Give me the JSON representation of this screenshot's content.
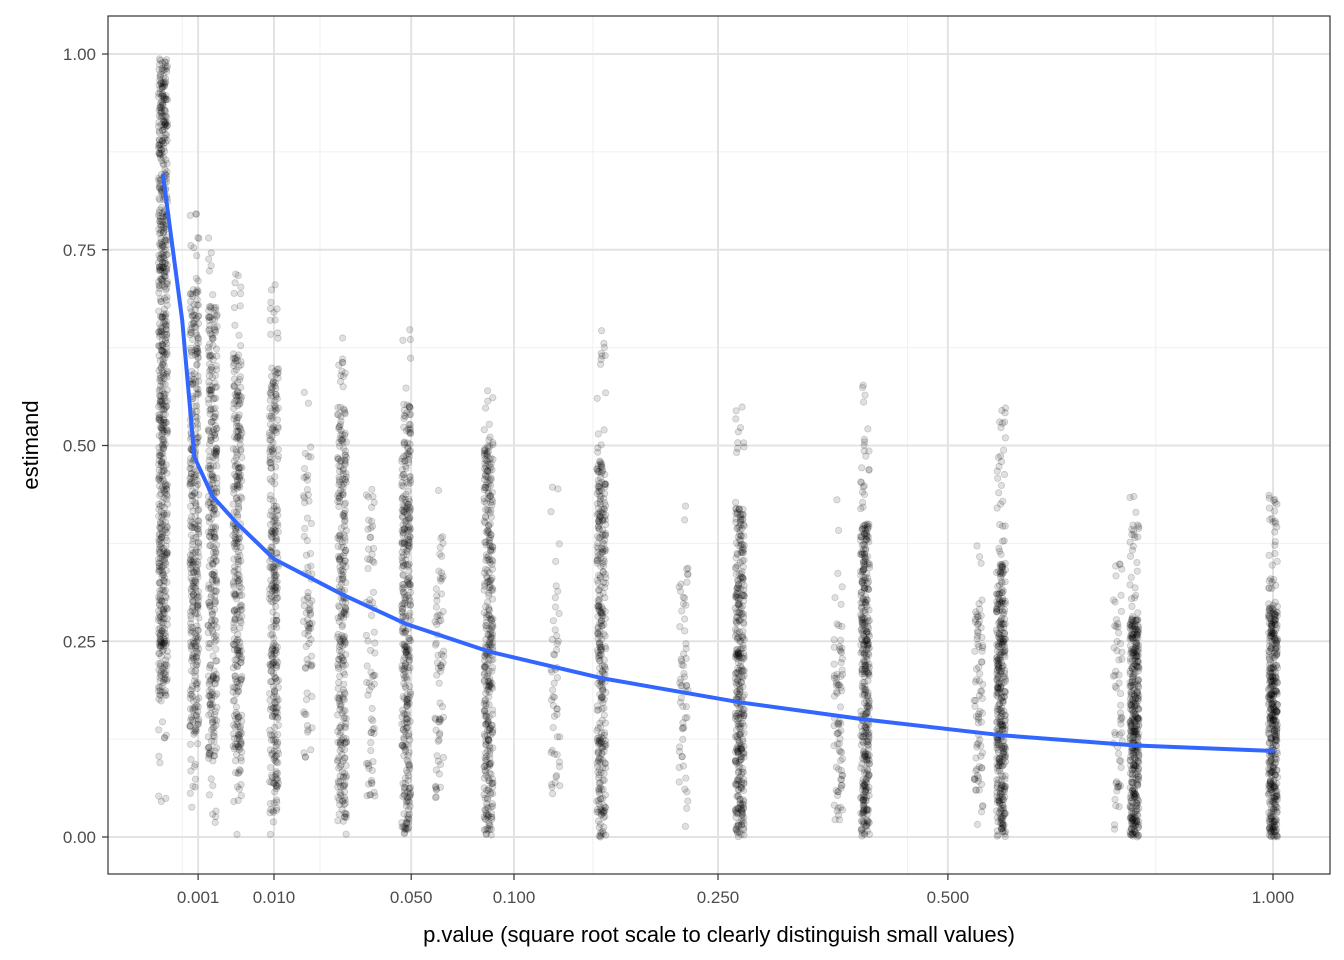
{
  "chart_data": {
    "type": "scatter",
    "xlabel": "p.value (square root scale to clearly distinguish small values)",
    "ylabel": "estimand",
    "x_scale": "sqrt",
    "xlim": [
      0,
      1.0
    ],
    "ylim": [
      -0.05,
      1.05
    ],
    "x_ticks": [
      {
        "value": 0.001,
        "label": "0.001"
      },
      {
        "value": 0.01,
        "label": "0.010"
      },
      {
        "value": 0.05,
        "label": "0.050"
      },
      {
        "value": 0.1,
        "label": "0.100"
      },
      {
        "value": 0.25,
        "label": "0.250"
      },
      {
        "value": 0.5,
        "label": "0.500"
      },
      {
        "value": 1.0,
        "label": "1.000"
      }
    ],
    "x_minor_ticks": [
      0.0003,
      0.02,
      0.15,
      0.45,
      0.8
    ],
    "y_ticks": [
      {
        "value": 0.0,
        "label": "0.00"
      },
      {
        "value": 0.25,
        "label": "0.25"
      },
      {
        "value": 0.5,
        "label": "0.50"
      },
      {
        "value": 0.75,
        "label": "0.75"
      },
      {
        "value": 1.0,
        "label": "1.00"
      }
    ],
    "y_minor_ticks": [
      0.125,
      0.375,
      0.625,
      0.875
    ],
    "point_clusters": [
      {
        "x": 0.0,
        "y_min": 0.03,
        "y_max": 1.0,
        "dense_lo": 0.18,
        "dense_hi": 1.0,
        "n": 700
      },
      {
        "x": 0.0008,
        "y_min": 0.03,
        "y_max": 0.82,
        "dense_lo": 0.12,
        "dense_hi": 0.7,
        "n": 360
      },
      {
        "x": 0.002,
        "y_min": 0.01,
        "y_max": 0.77,
        "dense_lo": 0.1,
        "dense_hi": 0.68,
        "n": 340
      },
      {
        "x": 0.0045,
        "y_min": 0.0,
        "y_max": 0.74,
        "dense_lo": 0.08,
        "dense_hi": 0.62,
        "n": 320
      },
      {
        "x": 0.01,
        "y_min": 0.0,
        "y_max": 0.71,
        "dense_lo": 0.03,
        "dense_hi": 0.6,
        "n": 320
      },
      {
        "x": 0.017,
        "y_min": 0.05,
        "y_max": 0.6,
        "dense_lo": 0.1,
        "dense_hi": 0.5,
        "n": 80
      },
      {
        "x": 0.026,
        "y_min": 0.0,
        "y_max": 0.65,
        "dense_lo": 0.02,
        "dense_hi": 0.55,
        "n": 300
      },
      {
        "x": 0.035,
        "y_min": 0.01,
        "y_max": 0.5,
        "dense_lo": 0.05,
        "dense_hi": 0.45,
        "n": 70
      },
      {
        "x": 0.048,
        "y_min": 0.0,
        "y_max": 0.65,
        "dense_lo": 0.0,
        "dense_hi": 0.55,
        "n": 360
      },
      {
        "x": 0.062,
        "y_min": 0.01,
        "y_max": 0.47,
        "dense_lo": 0.05,
        "dense_hi": 0.4,
        "n": 70
      },
      {
        "x": 0.086,
        "y_min": 0.0,
        "y_max": 0.57,
        "dense_lo": 0.0,
        "dense_hi": 0.5,
        "n": 360
      },
      {
        "x": 0.125,
        "y_min": 0.03,
        "y_max": 0.45,
        "dense_lo": 0.05,
        "dense_hi": 0.35,
        "n": 50
      },
      {
        "x": 0.156,
        "y_min": 0.0,
        "y_max": 0.65,
        "dense_lo": 0.0,
        "dense_hi": 0.48,
        "n": 340
      },
      {
        "x": 0.22,
        "y_min": 0.0,
        "y_max": 0.44,
        "dense_lo": 0.03,
        "dense_hi": 0.35,
        "n": 60
      },
      {
        "x": 0.27,
        "y_min": 0.0,
        "y_max": 0.56,
        "dense_lo": 0.0,
        "dense_hi": 0.42,
        "n": 380
      },
      {
        "x": 0.37,
        "y_min": 0.0,
        "y_max": 0.49,
        "dense_lo": 0.02,
        "dense_hi": 0.35,
        "n": 80
      },
      {
        "x": 0.4,
        "y_min": 0.0,
        "y_max": 0.59,
        "dense_lo": 0.0,
        "dense_hi": 0.4,
        "n": 400
      },
      {
        "x": 0.54,
        "y_min": 0.0,
        "y_max": 0.38,
        "dense_lo": 0.03,
        "dense_hi": 0.3,
        "n": 80
      },
      {
        "x": 0.57,
        "y_min": 0.0,
        "y_max": 0.55,
        "dense_lo": 0.0,
        "dense_hi": 0.35,
        "n": 400
      },
      {
        "x": 0.74,
        "y_min": 0.01,
        "y_max": 0.35,
        "dense_lo": 0.03,
        "dense_hi": 0.28,
        "n": 60
      },
      {
        "x": 0.766,
        "y_min": 0.0,
        "y_max": 0.44,
        "dense_lo": 0.0,
        "dense_hi": 0.28,
        "n": 420
      },
      {
        "x": 1.0,
        "y_min": 0.0,
        "y_max": 0.44,
        "dense_lo": 0.0,
        "dense_hi": 0.3,
        "n": 440
      }
    ],
    "point_color": "#000000",
    "point_opacity": 0.12,
    "trend_line": {
      "color": "#3366ff",
      "x": [
        0.0,
        0.0003,
        0.0008,
        0.002,
        0.0045,
        0.01,
        0.026,
        0.048,
        0.086,
        0.156,
        0.27,
        0.4,
        0.57,
        0.766,
        1.0
      ],
      "y": [
        0.845,
        0.66,
        0.485,
        0.435,
        0.4,
        0.355,
        0.31,
        0.272,
        0.237,
        0.203,
        0.172,
        0.15,
        0.13,
        0.117,
        0.11
      ]
    }
  }
}
